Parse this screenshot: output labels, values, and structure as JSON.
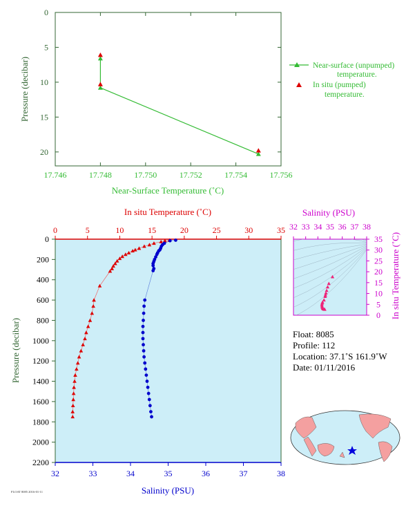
{
  "colors": {
    "near_surface": "#33bb33",
    "insitu_temp": "#dd0000",
    "salinity": "#0000cc",
    "salinity_axis": "#cc00cc",
    "pressure_axis": "#336633",
    "plot_bg": "#cdeef8"
  },
  "chart_data": [
    {
      "type": "line",
      "xlabel": "Near-Surface Temperature (˚C)",
      "ylabel": "Pressure (decibar)",
      "xlim": [
        17.746,
        17.756
      ],
      "ylim": [
        22,
        0
      ],
      "xticks": [
        "17.746",
        "17.748",
        "17.750",
        "17.752",
        "17.754",
        "17.756"
      ],
      "yticks": [
        "0",
        "5",
        "10",
        "15",
        "20"
      ],
      "legend_position": "right",
      "series": [
        {
          "name": "Near-surface (unpumped) temperature.",
          "points": [
            [
              17.748,
              6.6
            ],
            [
              17.748,
              10.8
            ],
            [
              17.755,
              20.3
            ]
          ]
        },
        {
          "name": "In situ (pumped) temperature.",
          "points": [
            [
              17.748,
              6.1
            ],
            [
              17.748,
              10.3
            ],
            [
              17.755,
              19.8
            ]
          ]
        }
      ]
    },
    {
      "type": "line",
      "xlabel_top": "In situ Temperature (˚C)",
      "xlabel_bottom": "Salinity (PSU)",
      "ylabel": "Pressure (decibar)",
      "temp_lim": [
        0,
        35
      ],
      "sal_lim": [
        32,
        38
      ],
      "ylim": [
        2200,
        0
      ],
      "temp_ticks": [
        "0",
        "5",
        "10",
        "15",
        "20",
        "25",
        "30",
        "35"
      ],
      "sal_ticks": [
        "32",
        "33",
        "34",
        "35",
        "36",
        "37",
        "38"
      ],
      "yticks": [
        "0",
        "200",
        "400",
        "600",
        "800",
        "1000",
        "1200",
        "1400",
        "1600",
        "1800",
        "2000",
        "2200"
      ],
      "temperature": [
        [
          17.7,
          10
        ],
        [
          17.0,
          15
        ],
        [
          16.4,
          25
        ],
        [
          15.3,
          40
        ],
        [
          14.6,
          55
        ],
        [
          13.8,
          70
        ],
        [
          13.0,
          90
        ],
        [
          12.4,
          105
        ],
        [
          12.0,
          115
        ],
        [
          11.4,
          135
        ],
        [
          10.9,
          150
        ],
        [
          10.4,
          170
        ],
        [
          10.0,
          190
        ],
        [
          9.6,
          215
        ],
        [
          9.3,
          240
        ],
        [
          9.0,
          265
        ],
        [
          8.8,
          290
        ],
        [
          8.5,
          315
        ],
        [
          6.9,
          460
        ],
        [
          6.0,
          600
        ],
        [
          5.9,
          660
        ],
        [
          5.7,
          730
        ],
        [
          5.4,
          800
        ],
        [
          5.1,
          860
        ],
        [
          4.8,
          920
        ],
        [
          4.6,
          980
        ],
        [
          4.3,
          1040
        ],
        [
          4.0,
          1100
        ],
        [
          3.7,
          1160
        ],
        [
          3.5,
          1220
        ],
        [
          3.3,
          1280
        ],
        [
          3.1,
          1340
        ],
        [
          3.0,
          1400
        ],
        [
          2.9,
          1460
        ],
        [
          2.85,
          1520
        ],
        [
          2.8,
          1580
        ],
        [
          2.75,
          1640
        ],
        [
          2.7,
          1700
        ],
        [
          2.7,
          1750
        ]
      ],
      "salinity": [
        [
          35.2,
          10
        ],
        [
          35.05,
          15
        ],
        [
          34.9,
          40
        ],
        [
          34.85,
          55
        ],
        [
          34.82,
          70
        ],
        [
          34.8,
          90
        ],
        [
          34.78,
          105
        ],
        [
          34.75,
          115
        ],
        [
          34.72,
          135
        ],
        [
          34.7,
          150
        ],
        [
          34.67,
          175
        ],
        [
          34.64,
          200
        ],
        [
          34.62,
          220
        ],
        [
          34.6,
          240
        ],
        [
          34.6,
          260
        ],
        [
          34.62,
          290
        ],
        [
          34.6,
          310
        ],
        [
          34.38,
          600
        ],
        [
          34.36,
          660
        ],
        [
          34.35,
          730
        ],
        [
          34.34,
          800
        ],
        [
          34.33,
          860
        ],
        [
          34.33,
          920
        ],
        [
          34.33,
          980
        ],
        [
          34.34,
          1040
        ],
        [
          34.35,
          1100
        ],
        [
          34.36,
          1160
        ],
        [
          34.38,
          1220
        ],
        [
          34.4,
          1280
        ],
        [
          34.42,
          1340
        ],
        [
          34.44,
          1400
        ],
        [
          34.46,
          1460
        ],
        [
          34.48,
          1520
        ],
        [
          34.5,
          1580
        ],
        [
          34.52,
          1640
        ],
        [
          34.54,
          1700
        ],
        [
          34.56,
          1750
        ]
      ]
    },
    {
      "type": "scatter",
      "xlabel_top": "Salinity (PSU)",
      "ylabel_right": "In situ Temperature (˚C)",
      "xlim": [
        32,
        38
      ],
      "ylim": [
        0,
        35
      ],
      "xticks": [
        "32",
        "33",
        "34",
        "35",
        "36",
        "37",
        "38"
      ],
      "yticks": [
        "0",
        "5",
        "10",
        "15",
        "20",
        "25",
        "30",
        "35"
      ],
      "points": [
        [
          35.2,
          17.7
        ],
        [
          34.9,
          14.6
        ],
        [
          34.8,
          13.0
        ],
        [
          34.72,
          11.4
        ],
        [
          34.66,
          10.2
        ],
        [
          34.62,
          9.3
        ],
        [
          34.6,
          8.6
        ],
        [
          34.5,
          7.0
        ],
        [
          34.38,
          6.0
        ],
        [
          34.35,
          5.5
        ],
        [
          34.33,
          4.8
        ],
        [
          34.34,
          4.2
        ],
        [
          34.36,
          3.6
        ],
        [
          34.4,
          3.2
        ],
        [
          34.44,
          2.9
        ],
        [
          34.5,
          2.8
        ],
        [
          34.56,
          2.7
        ]
      ]
    }
  ],
  "info": {
    "float": "Float:  8085",
    "profile": "Profile:  112",
    "location": "Location:  37.1˚S  161.9˚W",
    "date": "Date:  01/11/2016"
  },
  "small_label": "FLOAT 8085 2016-01-11"
}
